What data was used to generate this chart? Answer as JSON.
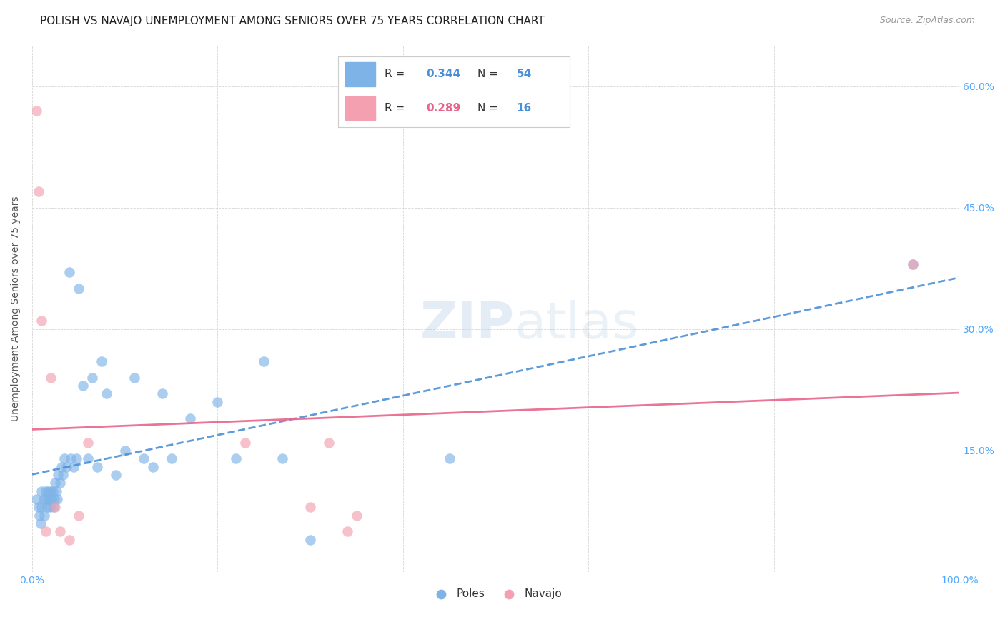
{
  "title": "POLISH VS NAVAJO UNEMPLOYMENT AMONG SENIORS OVER 75 YEARS CORRELATION CHART",
  "source": "Source: ZipAtlas.com",
  "ylabel": "Unemployment Among Seniors over 75 years",
  "xlim": [
    0.0,
    1.0
  ],
  "ylim": [
    0.0,
    0.65
  ],
  "x_ticks": [
    0.0,
    0.2,
    0.4,
    0.6,
    0.8,
    1.0
  ],
  "x_tick_labels": [
    "0.0%",
    "",
    "",
    "",
    "",
    "100.0%"
  ],
  "y_ticks": [
    0.0,
    0.15,
    0.3,
    0.45,
    0.6
  ],
  "y_tick_labels": [
    "",
    "15.0%",
    "30.0%",
    "45.0%",
    "60.0%"
  ],
  "background_color": "#ffffff",
  "grid_color": "#cccccc",
  "poles_color": "#7EB3E8",
  "navajo_color": "#F4A0B0",
  "poles_line_color": "#4A90D9",
  "navajo_line_color": "#E8658A",
  "poles_R": 0.344,
  "poles_N": 54,
  "navajo_R": 0.289,
  "navajo_N": 16,
  "legend_label_poles": "Poles",
  "legend_label_navajo": "Navajo",
  "poles_x": [
    0.005,
    0.007,
    0.008,
    0.009,
    0.01,
    0.01,
    0.012,
    0.013,
    0.015,
    0.015,
    0.016,
    0.017,
    0.018,
    0.019,
    0.02,
    0.021,
    0.022,
    0.023,
    0.024,
    0.025,
    0.026,
    0.027,
    0.028,
    0.03,
    0.032,
    0.033,
    0.035,
    0.037,
    0.04,
    0.042,
    0.045,
    0.048,
    0.05,
    0.055,
    0.06,
    0.065,
    0.07,
    0.075,
    0.08,
    0.09,
    0.1,
    0.11,
    0.12,
    0.13,
    0.14,
    0.15,
    0.17,
    0.2,
    0.22,
    0.25,
    0.27,
    0.3,
    0.45,
    0.95
  ],
  "poles_y": [
    0.09,
    0.08,
    0.07,
    0.06,
    0.1,
    0.08,
    0.09,
    0.07,
    0.1,
    0.09,
    0.08,
    0.1,
    0.09,
    0.08,
    0.1,
    0.09,
    0.1,
    0.08,
    0.09,
    0.11,
    0.1,
    0.09,
    0.12,
    0.11,
    0.13,
    0.12,
    0.14,
    0.13,
    0.37,
    0.14,
    0.13,
    0.14,
    0.35,
    0.23,
    0.14,
    0.24,
    0.13,
    0.26,
    0.22,
    0.12,
    0.15,
    0.24,
    0.14,
    0.13,
    0.22,
    0.14,
    0.19,
    0.21,
    0.14,
    0.26,
    0.14,
    0.04,
    0.14,
    0.38
  ],
  "navajo_x": [
    0.005,
    0.007,
    0.01,
    0.015,
    0.02,
    0.025,
    0.03,
    0.04,
    0.05,
    0.06,
    0.23,
    0.3,
    0.32,
    0.34,
    0.35,
    0.95
  ],
  "navajo_y": [
    0.57,
    0.47,
    0.31,
    0.05,
    0.24,
    0.08,
    0.05,
    0.04,
    0.07,
    0.16,
    0.16,
    0.08,
    0.16,
    0.05,
    0.07,
    0.38
  ],
  "title_fontsize": 11,
  "axis_label_fontsize": 10,
  "tick_fontsize": 10,
  "legend_fontsize": 11,
  "tick_color": "#4DA6FF"
}
